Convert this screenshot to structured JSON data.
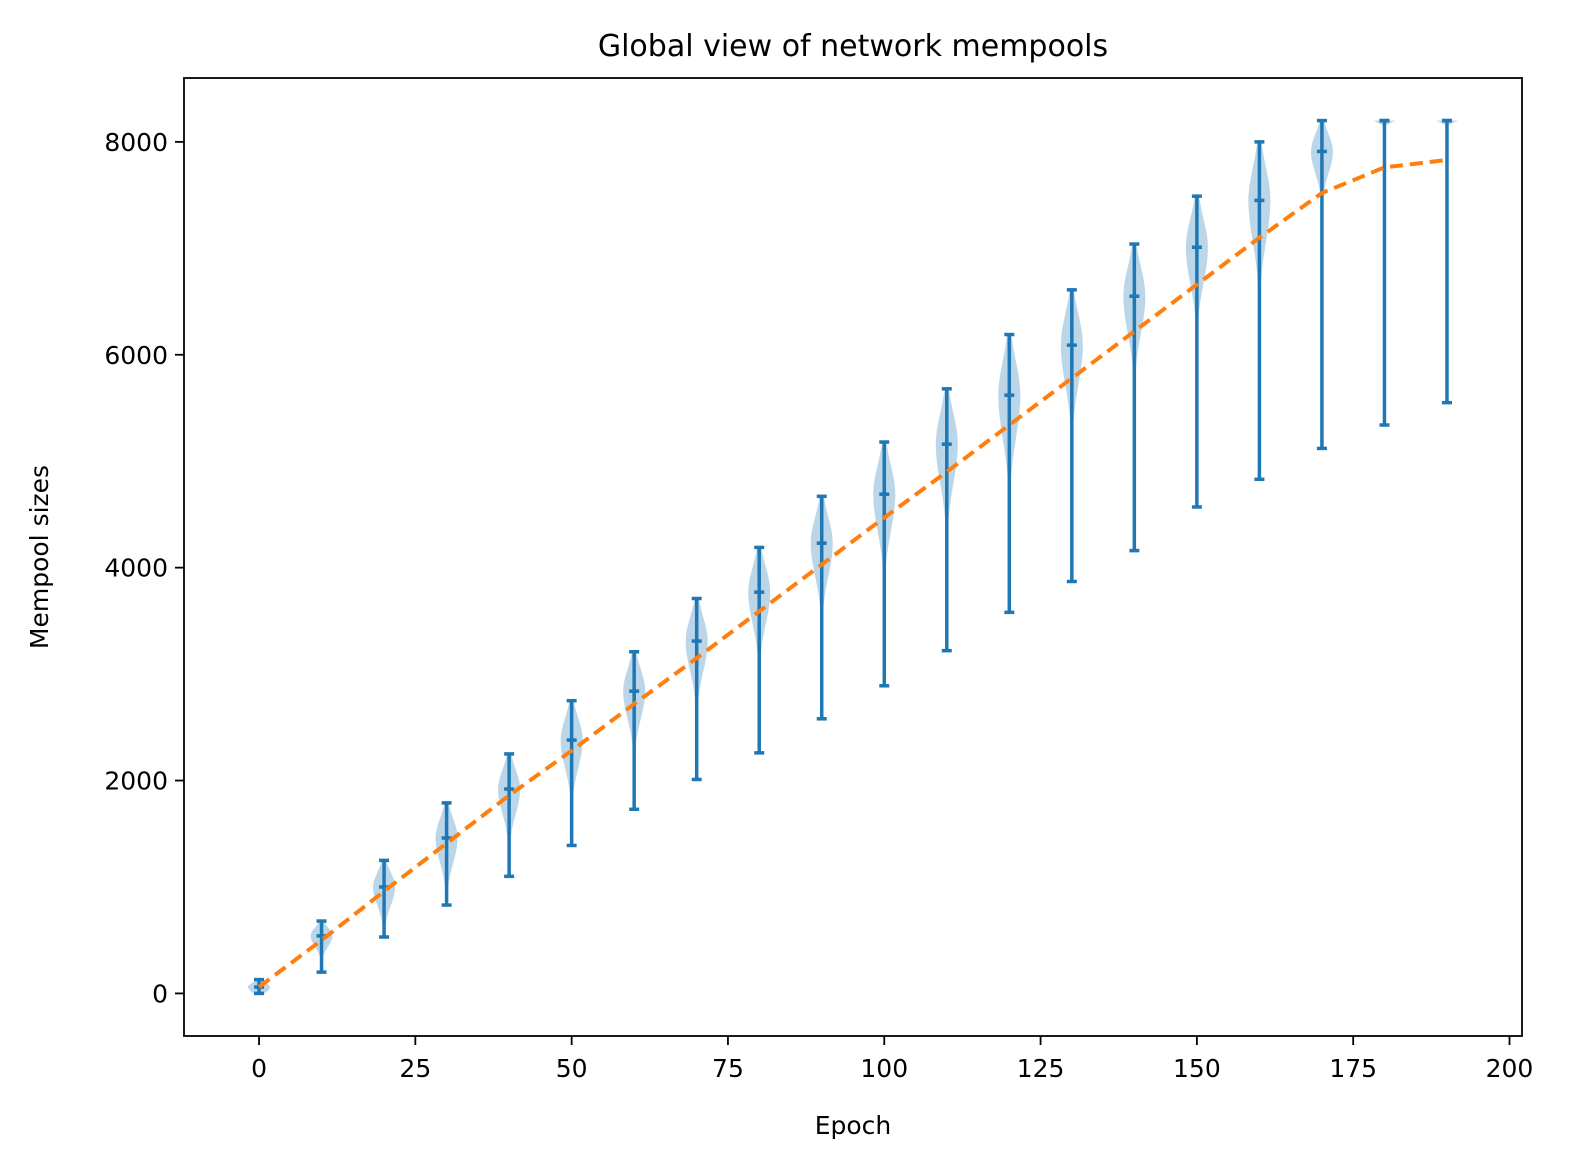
{
  "chart_data": {
    "type": "violin",
    "title": "Global view of network mempools",
    "xlabel": "Epoch",
    "ylabel": "Mempool sizes",
    "xlim": [
      -12,
      202
    ],
    "ylim": [
      -400,
      8600
    ],
    "xticks": [
      0,
      25,
      50,
      75,
      100,
      125,
      150,
      175,
      200
    ],
    "yticks": [
      0,
      2000,
      4000,
      6000,
      8000
    ],
    "grid": false,
    "violins": [
      {
        "x": 0,
        "min": 0,
        "median": 60,
        "max": 130
      },
      {
        "x": 10,
        "min": 200,
        "median": 540,
        "max": 680
      },
      {
        "x": 20,
        "min": 530,
        "median": 1000,
        "max": 1250
      },
      {
        "x": 30,
        "min": 830,
        "median": 1460,
        "max": 1790
      },
      {
        "x": 40,
        "min": 1100,
        "median": 1920,
        "max": 2250
      },
      {
        "x": 50,
        "min": 1390,
        "median": 2380,
        "max": 2750
      },
      {
        "x": 60,
        "min": 1730,
        "median": 2840,
        "max": 3210
      },
      {
        "x": 70,
        "min": 2010,
        "median": 3310,
        "max": 3710
      },
      {
        "x": 80,
        "min": 2260,
        "median": 3770,
        "max": 4190
      },
      {
        "x": 90,
        "min": 2580,
        "median": 4230,
        "max": 4670
      },
      {
        "x": 100,
        "min": 2890,
        "median": 4690,
        "max": 5180
      },
      {
        "x": 110,
        "min": 3220,
        "median": 5160,
        "max": 5680
      },
      {
        "x": 120,
        "min": 3580,
        "median": 5620,
        "max": 6190
      },
      {
        "x": 130,
        "min": 3870,
        "median": 6090,
        "max": 6610
      },
      {
        "x": 140,
        "min": 4160,
        "median": 6550,
        "max": 7040
      },
      {
        "x": 150,
        "min": 4570,
        "median": 7010,
        "max": 7490
      },
      {
        "x": 160,
        "min": 4830,
        "median": 7450,
        "max": 8000
      },
      {
        "x": 170,
        "min": 5120,
        "median": 7910,
        "max": 8200
      },
      {
        "x": 180,
        "min": 5340,
        "median": 8200,
        "max": 8200
      },
      {
        "x": 190,
        "min": 5550,
        "median": 8200,
        "max": 8200
      }
    ],
    "mean_line": {
      "style": "dashed",
      "x": [
        0,
        10,
        20,
        30,
        40,
        50,
        60,
        70,
        80,
        90,
        100,
        110,
        120,
        130,
        140,
        150,
        160,
        170,
        180,
        190
      ],
      "y": [
        60,
        500,
        960,
        1410,
        1860,
        2280,
        2720,
        3150,
        3590,
        4030,
        4470,
        4900,
        5340,
        5780,
        6220,
        6660,
        7100,
        7520,
        7760,
        7830
      ]
    },
    "colors": {
      "violin_fill": "#1f77b4",
      "violin_fill_opacity": 0.3,
      "whisker": "#1f77b4",
      "mean_line": "#ff7f0e",
      "axes": "#000000",
      "background": "#ffffff"
    }
  }
}
